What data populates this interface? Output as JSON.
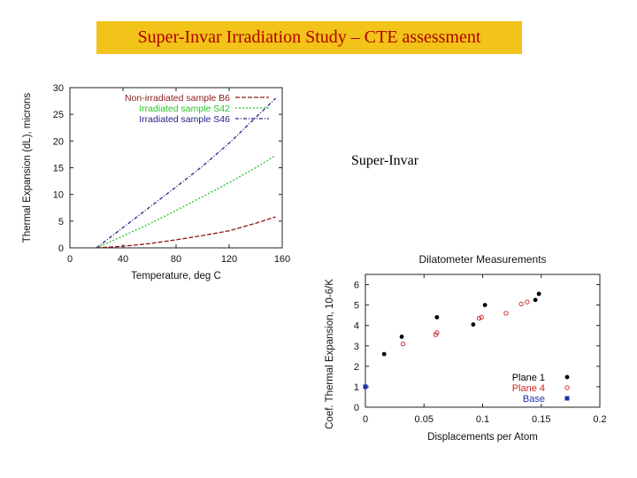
{
  "slide": {
    "title": "Super-Invar Irradiation Study – CTE assessment",
    "caption": "Super-Invar"
  },
  "chart_data": [
    {
      "type": "line",
      "title": "",
      "xlabel": "Temperature, deg C",
      "ylabel": "Thermal Expansion (dL), microns",
      "xlim": [
        0,
        160
      ],
      "ylim": [
        0,
        30
      ],
      "xticks": [
        0,
        40,
        80,
        120,
        160
      ],
      "yticks": [
        0,
        5,
        10,
        15,
        20,
        25,
        30
      ],
      "legend_position": "top-left",
      "grid": false,
      "series": [
        {
          "name": "Non-irradiated sample B6",
          "color": "#8b1a1a",
          "x": [
            20,
            40,
            60,
            80,
            100,
            120,
            140,
            155
          ],
          "y": [
            0,
            0.3,
            0.8,
            1.5,
            2.3,
            3.2,
            4.6,
            5.8
          ]
        },
        {
          "name": "Irradiated sample S42",
          "color": "#2bbf2b",
          "x": [
            20,
            40,
            60,
            80,
            100,
            120,
            140,
            155
          ],
          "y": [
            0,
            2.2,
            4.5,
            7.0,
            9.6,
            12.2,
            15.0,
            17.3
          ]
        },
        {
          "name": "Irradiated sample S46",
          "color": "#222288",
          "x": [
            20,
            40,
            60,
            80,
            100,
            120,
            140,
            155
          ],
          "y": [
            0,
            3.8,
            7.6,
            11.4,
            15.3,
            19.6,
            24.4,
            28.0
          ]
        }
      ]
    },
    {
      "type": "scatter",
      "title": "Dilatometer Measurements",
      "xlabel": "Displacements per Atom",
      "ylabel": "Coef. Thermal Expansion, 10-6/K",
      "xlim": [
        0,
        0.2
      ],
      "ylim": [
        0,
        6.5
      ],
      "xticks": [
        0,
        0.05,
        0.1,
        0.15,
        0.2
      ],
      "xtick_labels": [
        "0",
        "0.05",
        "0.1",
        "0.15",
        "0.2"
      ],
      "yticks": [
        0,
        1,
        2,
        3,
        4,
        5,
        6
      ],
      "legend_position": "bottom-right",
      "grid": false,
      "series": [
        {
          "name": "Plane 1",
          "color": "#000000",
          "marker": "filled-circle",
          "x": [
            0.016,
            0.031,
            0.061,
            0.092,
            0.102,
            0.145,
            0.148
          ],
          "y": [
            2.6,
            3.45,
            4.4,
            4.05,
            5.0,
            5.25,
            5.55
          ]
        },
        {
          "name": "Plane 4",
          "color": "#cc2222",
          "marker": "open-circle",
          "x": [
            0.032,
            0.06,
            0.061,
            0.097,
            0.099,
            0.12,
            0.133,
            0.138
          ],
          "y": [
            3.1,
            3.55,
            3.65,
            4.35,
            4.4,
            4.6,
            5.05,
            5.15
          ]
        },
        {
          "name": "Base",
          "color": "#1a2fa8",
          "marker": "filled-square",
          "x": [
            0.0
          ],
          "y": [
            1.0
          ]
        }
      ]
    }
  ]
}
